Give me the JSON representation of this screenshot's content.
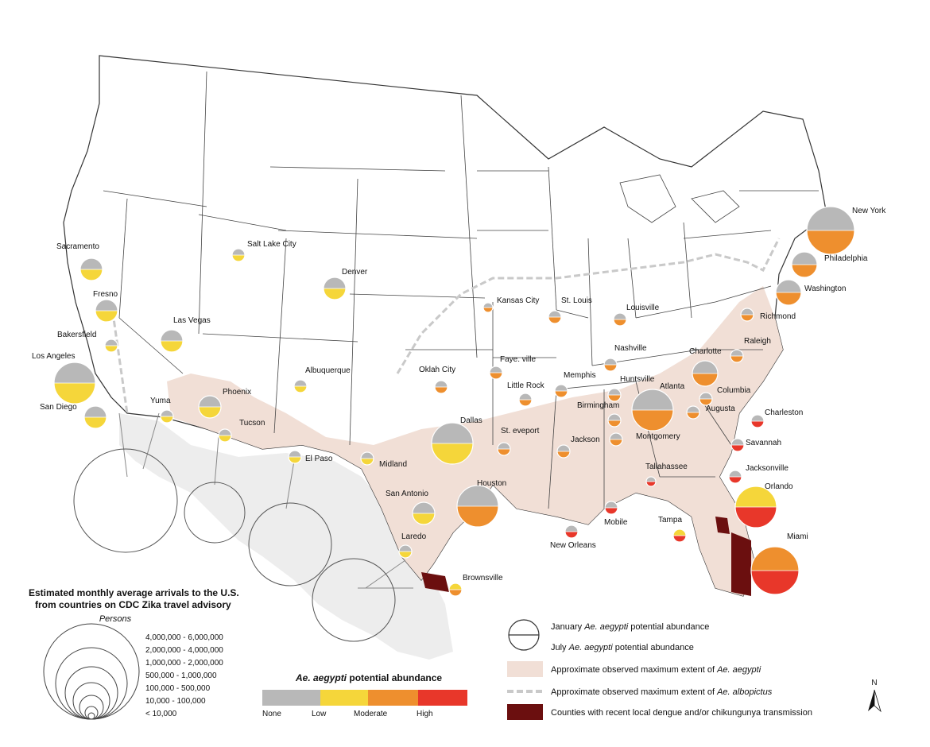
{
  "colors": {
    "none": "#b8b8b8",
    "low": "#f5d63a",
    "moderate": "#ee8f2e",
    "high": "#e8372a",
    "aegypti_extent": "#f1dfd6",
    "albopictus_line": "#c9c9c9",
    "dengue": "#6b0f0f",
    "state_border": "#333333",
    "mexico": "#ededed"
  },
  "cities": [
    {
      "name": "New York",
      "jan": "none",
      "jul": "moderate",
      "size": 6
    },
    {
      "name": "Philadelphia",
      "jan": "none",
      "jul": "moderate",
      "size": 4
    },
    {
      "name": "Washington",
      "jan": "none",
      "jul": "moderate",
      "size": 4
    },
    {
      "name": "Richmond",
      "jan": "none",
      "jul": "moderate",
      "size": 2
    },
    {
      "name": "Raleigh",
      "jan": "none",
      "jul": "moderate",
      "size": 2
    },
    {
      "name": "Charlotte",
      "jan": "none",
      "jul": "moderate",
      "size": 4
    },
    {
      "name": "Columbia",
      "jan": "none",
      "jul": "moderate",
      "size": 2
    },
    {
      "name": "Augusta",
      "jan": "none",
      "jul": "moderate",
      "size": 2
    },
    {
      "name": "Charleston",
      "jan": "none",
      "jul": "high",
      "size": 2
    },
    {
      "name": "Savannah",
      "jan": "none",
      "jul": "high",
      "size": 2
    },
    {
      "name": "Jacksonville",
      "jan": "none",
      "jul": "high",
      "size": 2
    },
    {
      "name": "Orlando",
      "jan": "low",
      "jul": "high",
      "size": 5
    },
    {
      "name": "Tampa",
      "jan": "low",
      "jul": "high",
      "size": 2
    },
    {
      "name": "Miami",
      "jan": "moderate",
      "jul": "high",
      "size": 6
    },
    {
      "name": "Tallahassee",
      "jan": "none",
      "jul": "high",
      "size": 1
    },
    {
      "name": "Atlanta",
      "jan": "none",
      "jul": "moderate",
      "size": 5
    },
    {
      "name": "Montgomery",
      "jan": "none",
      "jul": "moderate",
      "size": 2
    },
    {
      "name": "Birmingham",
      "jan": "none",
      "jul": "moderate",
      "size": 2
    },
    {
      "name": "Huntsville",
      "jan": "none",
      "jul": "moderate",
      "size": 2
    },
    {
      "name": "Nashville",
      "jan": "none",
      "jul": "moderate",
      "size": 2
    },
    {
      "name": "Mobile",
      "jan": "none",
      "jul": "high",
      "size": 2
    },
    {
      "name": "New Orleans",
      "jan": "none",
      "jul": "high",
      "size": 2
    },
    {
      "name": "Jackson",
      "jan": "none",
      "jul": "moderate",
      "size": 2
    },
    {
      "name": "Memphis",
      "jan": "none",
      "jul": "moderate",
      "size": 2
    },
    {
      "name": "Louisville",
      "jan": "none",
      "jul": "moderate",
      "size": 2
    },
    {
      "name": "St. Louis",
      "jan": "none",
      "jul": "moderate",
      "size": 2
    },
    {
      "name": "Kansas City",
      "jan": "none",
      "jul": "moderate",
      "size": 1
    },
    {
      "name": "Faye. ville",
      "jan": "none",
      "jul": "moderate",
      "size": 2
    },
    {
      "name": "Little Rock",
      "jan": "none",
      "jul": "moderate",
      "size": 2
    },
    {
      "name": "Oklah City",
      "jan": "none",
      "jul": "moderate",
      "size": 2
    },
    {
      "name": "Dallas",
      "jan": "none",
      "jul": "low",
      "size": 5
    },
    {
      "name": "St. eveport",
      "jan": "none",
      "jul": "moderate",
      "size": 2
    },
    {
      "name": "Houston",
      "jan": "none",
      "jul": "moderate",
      "size": 5
    },
    {
      "name": "San Antonio",
      "jan": "none",
      "jul": "low",
      "size": 3
    },
    {
      "name": "Laredo",
      "jan": "none",
      "jul": "low",
      "size": 2
    },
    {
      "name": "Brownsville",
      "jan": "low",
      "jul": "moderate",
      "size": 2
    },
    {
      "name": "Midland",
      "jan": "none",
      "jul": "low",
      "size": 2
    },
    {
      "name": "El Paso",
      "jan": "none",
      "jul": "low",
      "size": 2
    },
    {
      "name": "Tucson",
      "jan": "none",
      "jul": "low",
      "size": 2
    },
    {
      "name": "Phoenix",
      "jan": "none",
      "jul": "low",
      "size": 3
    },
    {
      "name": "Yuma",
      "jan": "none",
      "jul": "low",
      "size": 2
    },
    {
      "name": "Albuquerque",
      "jan": "none",
      "jul": "low",
      "size": 2
    },
    {
      "name": "Denver",
      "jan": "none",
      "jul": "low",
      "size": 3
    },
    {
      "name": "Salt Lake City",
      "jan": "none",
      "jul": "low",
      "size": 2
    },
    {
      "name": "Las Vegas",
      "jan": "none",
      "jul": "low",
      "size": 3
    },
    {
      "name": "Sacramento",
      "jan": "none",
      "jul": "low",
      "size": 3
    },
    {
      "name": "Fresno",
      "jan": "none",
      "jul": "low",
      "size": 3
    },
    {
      "name": "Bakersfield",
      "jan": "none",
      "jul": "low",
      "size": 2
    },
    {
      "name": "Los Angeles",
      "jan": "none",
      "jul": "low",
      "size": 5
    },
    {
      "name": "San Diego",
      "jan": "none",
      "jul": "low",
      "size": 3
    }
  ],
  "arrivals_legend": {
    "title_line1": "Estimated monthly average arrivals to the U.S.",
    "title_line2": "from countries on CDC Zika travel advisory",
    "subtitle": "Persons",
    "ranges": [
      "4,000,000  -  6,000,000",
      "2,000,000  -  4,000,000",
      "1,000,000  -  2,000,000",
      "500,000  -  1,000,000",
      "100,000  -  500,000",
      "10,000  -  100,000",
      "< 10,000"
    ]
  },
  "abundance_legend": {
    "title_species": "Ae. aegypti",
    "title_rest": " potential abundance",
    "classes": [
      "None",
      "Low",
      "Moderate",
      "High"
    ]
  },
  "key_legend": {
    "january_pre": "January ",
    "january_species": "Ae. aegypti",
    "january_post": " potential abundance",
    "july_pre": "July ",
    "july_species": "Ae. aegypti",
    "july_post": " potential abundance",
    "aegypti_extent_pre": "Approximate observed maximum extent of ",
    "aegypti_extent_species": "Ae. aegypti",
    "albopictus_extent_pre": "Approximate observed maximum extent of ",
    "albopictus_extent_species": "Ae. albopictus",
    "dengue": "Counties with recent local dengue and/or chikungunya transmission"
  },
  "north_arrow": "N"
}
